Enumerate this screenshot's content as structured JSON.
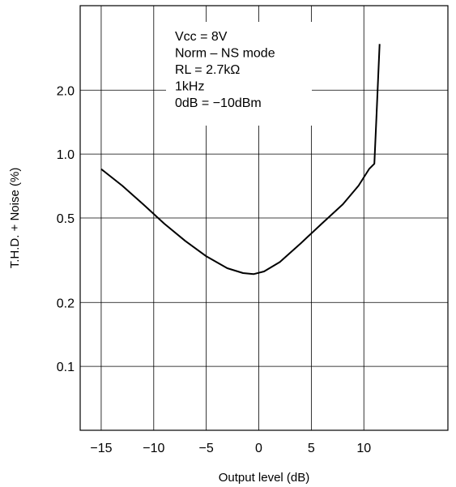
{
  "chart_data": {
    "type": "line",
    "title": "",
    "xlabel": "Output level (dB)",
    "ylabel": "T.H.D. + Noise  (%)",
    "xlim": [
      -17,
      18
    ],
    "ylim": [
      0.05,
      5
    ],
    "yscale": "log",
    "grid": true,
    "x_ticks": [
      -15,
      -10,
      -5,
      0,
      5,
      10
    ],
    "x_tick_labels": [
      "−15",
      "−10",
      "−5",
      "0",
      "5",
      "10"
    ],
    "y_ticks": [
      0.1,
      0.2,
      0.5,
      1.0,
      2.0
    ],
    "y_tick_labels": [
      "0.1",
      "0.2",
      "0.5",
      "1.0",
      "2.0"
    ],
    "annotations": [
      "Vcc = 8V",
      "Norm – NS mode",
      "RL = 2.7kΩ",
      "1kHz",
      "0dB = −10dBm"
    ],
    "series": [
      {
        "x": [
          -15,
          -13,
          -11,
          -9,
          -7,
          -5,
          -3,
          -1.5,
          -0.5,
          0.5,
          2,
          4,
          6,
          8,
          9.5,
          10.5,
          11,
          11.2,
          11.5
        ],
        "y": [
          0.85,
          0.71,
          0.58,
          0.47,
          0.39,
          0.33,
          0.29,
          0.275,
          0.272,
          0.28,
          0.31,
          0.38,
          0.47,
          0.58,
          0.71,
          0.85,
          0.9,
          1.5,
          3.3
        ]
      }
    ]
  }
}
